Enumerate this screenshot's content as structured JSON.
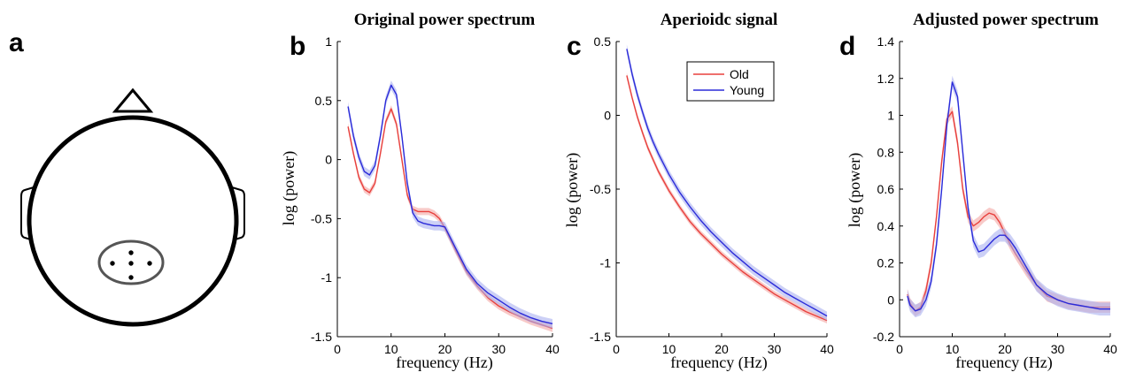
{
  "panels": {
    "a": {
      "letter": "a"
    },
    "b": {
      "letter": "b"
    },
    "c": {
      "letter": "c"
    },
    "d": {
      "letter": "d"
    }
  },
  "colors": {
    "old": "#e8403d",
    "old_band": "#f4a7a3",
    "young": "#2b2bd9",
    "young_band": "#aab0f0"
  },
  "chart_data": [
    {
      "panel": "b",
      "type": "line",
      "title": "Original power spectrum",
      "xlabel": "frequency (Hz)",
      "ylabel": "log (power)",
      "xlim": [
        0,
        40
      ],
      "ylim": [
        -1.5,
        1
      ],
      "xticks": [
        0,
        10,
        20,
        30,
        40
      ],
      "yticks": [
        -1.5,
        -1,
        -0.5,
        0,
        0.5,
        1
      ],
      "ytick_labels": [
        "-1.5",
        "-1",
        "-0.5",
        "0",
        "0.5",
        "1"
      ],
      "shaded_error": true,
      "series": [
        {
          "key": "old",
          "x": [
            2,
            3,
            4,
            5,
            6,
            7,
            8,
            9,
            10,
            11,
            12,
            13,
            14,
            15,
            16,
            17,
            18,
            19,
            20,
            22,
            24,
            26,
            28,
            30,
            32,
            34,
            36,
            38,
            40
          ],
          "values": [
            0.28,
            0.05,
            -0.15,
            -0.25,
            -0.28,
            -0.2,
            0.05,
            0.32,
            0.43,
            0.3,
            0.0,
            -0.3,
            -0.42,
            -0.44,
            -0.44,
            -0.44,
            -0.46,
            -0.5,
            -0.58,
            -0.77,
            -0.95,
            -1.07,
            -1.17,
            -1.24,
            -1.29,
            -1.33,
            -1.37,
            -1.4,
            -1.43
          ],
          "band": 0.03
        },
        {
          "key": "young",
          "x": [
            2,
            3,
            4,
            5,
            6,
            7,
            8,
            9,
            10,
            11,
            12,
            13,
            14,
            15,
            16,
            17,
            18,
            19,
            20,
            22,
            24,
            26,
            28,
            30,
            32,
            34,
            36,
            38,
            40
          ],
          "values": [
            0.45,
            0.2,
            0.02,
            -0.1,
            -0.13,
            -0.05,
            0.2,
            0.5,
            0.63,
            0.55,
            0.2,
            -0.2,
            -0.45,
            -0.52,
            -0.54,
            -0.55,
            -0.56,
            -0.56,
            -0.57,
            -0.75,
            -0.93,
            -1.05,
            -1.13,
            -1.19,
            -1.25,
            -1.3,
            -1.34,
            -1.37,
            -1.39
          ],
          "band": 0.04
        }
      ]
    },
    {
      "panel": "c",
      "type": "line",
      "title": "Aperioidc signal",
      "xlabel": "frequency (Hz)",
      "ylabel": "log (power)",
      "xlim": [
        0,
        40
      ],
      "ylim": [
        -1.5,
        0.5
      ],
      "xticks": [
        0,
        10,
        20,
        30,
        40
      ],
      "yticks": [
        -1.5,
        -1,
        -0.5,
        0,
        0.5
      ],
      "ytick_labels": [
        "-1.5",
        "-1",
        "-0.5",
        "0",
        "0.5"
      ],
      "shaded_error": true,
      "legend": {
        "position": "top-center",
        "entries": [
          "Old",
          "Young"
        ]
      },
      "series": [
        {
          "key": "old",
          "name": "Old",
          "x": [
            2,
            3,
            4,
            5,
            6,
            7,
            8,
            10,
            12,
            14,
            16,
            18,
            20,
            22,
            24,
            26,
            28,
            30,
            32,
            34,
            36,
            38,
            40
          ],
          "values": [
            0.27,
            0.12,
            -0.01,
            -0.12,
            -0.22,
            -0.3,
            -0.38,
            -0.51,
            -0.62,
            -0.72,
            -0.8,
            -0.87,
            -0.94,
            -1.0,
            -1.06,
            -1.11,
            -1.16,
            -1.21,
            -1.25,
            -1.29,
            -1.33,
            -1.36,
            -1.39
          ],
          "band": 0.02
        },
        {
          "key": "young",
          "name": "Young",
          "x": [
            2,
            3,
            4,
            5,
            6,
            7,
            8,
            10,
            12,
            14,
            16,
            18,
            20,
            22,
            24,
            26,
            28,
            30,
            32,
            34,
            36,
            38,
            40
          ],
          "values": [
            0.45,
            0.28,
            0.14,
            0.02,
            -0.09,
            -0.18,
            -0.26,
            -0.4,
            -0.52,
            -0.62,
            -0.71,
            -0.79,
            -0.86,
            -0.93,
            -0.99,
            -1.05,
            -1.1,
            -1.15,
            -1.2,
            -1.24,
            -1.28,
            -1.32,
            -1.36
          ],
          "band": 0.03
        }
      ]
    },
    {
      "panel": "d",
      "type": "line",
      "title": "Adjusted power spectrum",
      "xlabel": "frequency (Hz)",
      "ylabel": "log (power)",
      "xlim": [
        0,
        40
      ],
      "ylim": [
        -0.2,
        1.4
      ],
      "xticks": [
        0,
        10,
        20,
        30,
        40
      ],
      "yticks": [
        -0.2,
        0,
        0.2,
        0.4,
        0.6,
        0.8,
        1.0,
        1.2,
        1.4
      ],
      "ytick_labels": [
        "-0.2",
        "0",
        "0.2",
        "0.4",
        "0.6",
        "0.8",
        "1",
        "1.2",
        "1.4"
      ],
      "shaded_error": true,
      "series": [
        {
          "key": "old",
          "x": [
            1.5,
            2,
            3,
            4,
            5,
            6,
            7,
            8,
            9,
            10,
            11,
            12,
            13,
            14,
            15,
            16,
            17,
            18,
            19,
            20,
            21,
            22,
            24,
            26,
            28,
            30,
            32,
            34,
            36,
            38,
            40
          ],
          "values": [
            0.03,
            -0.02,
            -0.06,
            -0.04,
            0.05,
            0.2,
            0.45,
            0.75,
            0.98,
            1.02,
            0.85,
            0.6,
            0.45,
            0.4,
            0.42,
            0.45,
            0.47,
            0.46,
            0.42,
            0.36,
            0.3,
            0.25,
            0.16,
            0.08,
            0.02,
            0.0,
            -0.02,
            -0.03,
            -0.04,
            -0.04,
            -0.04
          ],
          "band": 0.03
        },
        {
          "key": "young",
          "x": [
            1.5,
            2,
            3,
            4,
            5,
            6,
            7,
            8,
            9,
            10,
            11,
            12,
            13,
            14,
            15,
            16,
            17,
            18,
            19,
            20,
            21,
            22,
            24,
            26,
            28,
            30,
            32,
            34,
            36,
            38,
            40
          ],
          "values": [
            0.02,
            -0.03,
            -0.06,
            -0.05,
            0.0,
            0.1,
            0.3,
            0.6,
            0.95,
            1.18,
            1.1,
            0.8,
            0.5,
            0.32,
            0.26,
            0.27,
            0.3,
            0.33,
            0.35,
            0.35,
            0.32,
            0.28,
            0.18,
            0.08,
            0.03,
            0.0,
            -0.02,
            -0.03,
            -0.04,
            -0.05,
            -0.05
          ],
          "band": 0.035
        }
      ]
    }
  ]
}
